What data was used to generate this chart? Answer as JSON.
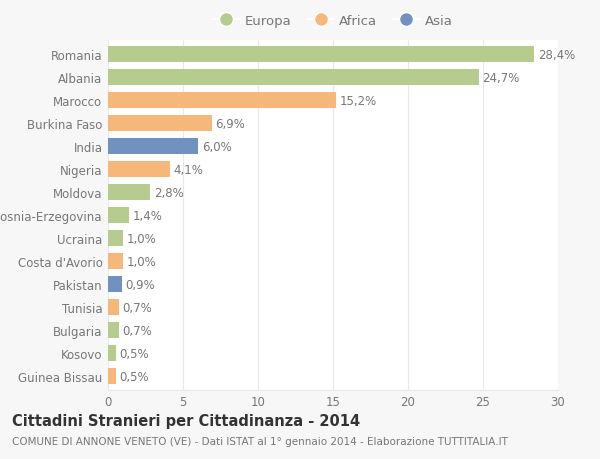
{
  "countries": [
    "Romania",
    "Albania",
    "Marocco",
    "Burkina Faso",
    "India",
    "Nigeria",
    "Moldova",
    "Bosnia-Erzegovina",
    "Ucraina",
    "Costa d'Avorio",
    "Pakistan",
    "Tunisia",
    "Bulgaria",
    "Kosovo",
    "Guinea Bissau"
  ],
  "values": [
    28.4,
    24.7,
    15.2,
    6.9,
    6.0,
    4.1,
    2.8,
    1.4,
    1.0,
    1.0,
    0.9,
    0.7,
    0.7,
    0.5,
    0.5
  ],
  "labels": [
    "28,4%",
    "24,7%",
    "15,2%",
    "6,9%",
    "6,0%",
    "4,1%",
    "2,8%",
    "1,4%",
    "1,0%",
    "1,0%",
    "0,9%",
    "0,7%",
    "0,7%",
    "0,5%",
    "0,5%"
  ],
  "continents": [
    "Europa",
    "Europa",
    "Africa",
    "Africa",
    "Asia",
    "Africa",
    "Europa",
    "Europa",
    "Europa",
    "Africa",
    "Asia",
    "Africa",
    "Europa",
    "Europa",
    "Africa"
  ],
  "colors": {
    "Europa": "#b5cc8e",
    "Africa": "#f5b87a",
    "Asia": "#7191c0"
  },
  "title": "Cittadini Stranieri per Cittadinanza - 2014",
  "subtitle": "COMUNE DI ANNONE VENETO (VE) - Dati ISTAT al 1° gennaio 2014 - Elaborazione TUTTITALIA.IT",
  "xlim": [
    0,
    30
  ],
  "xticks": [
    0,
    5,
    10,
    15,
    20,
    25,
    30
  ],
  "background_color": "#f7f7f7",
  "plot_background": "#ffffff",
  "grid_color": "#e8e8e8",
  "bar_height": 0.68,
  "label_fontsize": 8.5,
  "tick_fontsize": 8.5,
  "title_fontsize": 10.5,
  "subtitle_fontsize": 7.5,
  "text_color": "#777777",
  "title_color": "#333333"
}
